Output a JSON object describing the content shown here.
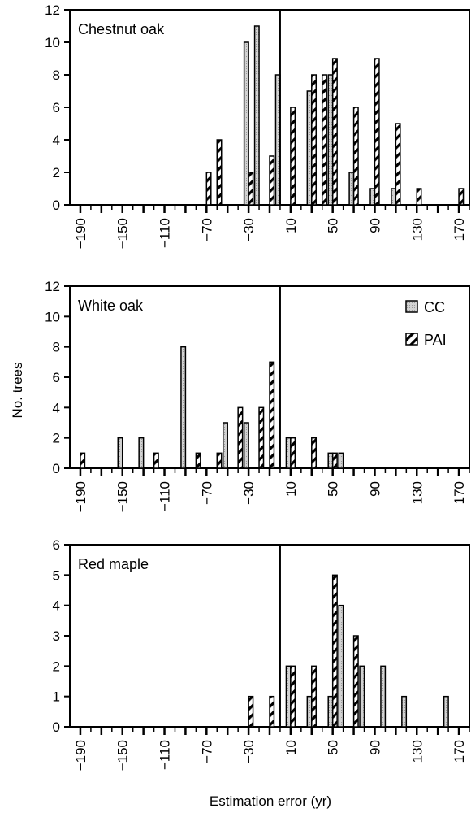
{
  "figure": {
    "xlabel": "Estimation error (yr)",
    "ylabel": "No. trees",
    "colors": {
      "cc_fill": "#d2d2d2",
      "pai_fill": "#ffffff",
      "stroke": "#000000"
    }
  },
  "chart_data": [
    {
      "type": "bar",
      "title": "Chestnut oak",
      "xlabel": "",
      "ylabel": "",
      "xlim": [
        -200,
        180
      ],
      "ylim": [
        0,
        12
      ],
      "yticks": [
        0,
        2,
        4,
        6,
        8,
        10,
        12
      ],
      "xticks": [
        -190,
        -150,
        -110,
        -70,
        -30,
        10,
        50,
        90,
        130,
        170
      ],
      "xtick_labels": [
        "−190",
        "−150",
        "−110",
        "−70",
        "−30",
        "10",
        "50",
        "90",
        "130",
        "170"
      ],
      "bin_width": 10,
      "reference_line_x": 0,
      "legend": null,
      "series": [
        {
          "name": "CC",
          "x": [
            -30,
            -20,
            0,
            30,
            50,
            70,
            90,
            110
          ],
          "values": [
            10,
            11,
            8,
            7,
            8,
            2,
            1,
            1
          ]
        },
        {
          "name": "PAI",
          "x": [
            -70,
            -60,
            -30,
            -10,
            10,
            30,
            40,
            50,
            70,
            90,
            110,
            130,
            170
          ],
          "values": [
            2,
            4,
            2,
            3,
            6,
            8,
            8,
            9,
            6,
            9,
            5,
            1,
            1
          ]
        }
      ]
    },
    {
      "type": "bar",
      "title": "White oak",
      "xlabel": "",
      "ylabel": "",
      "xlim": [
        -200,
        180
      ],
      "ylim": [
        0,
        12
      ],
      "yticks": [
        0,
        2,
        4,
        6,
        8,
        10,
        12
      ],
      "xticks": [
        -190,
        -150,
        -110,
        -70,
        -30,
        10,
        50,
        90,
        130,
        170
      ],
      "xtick_labels": [
        "−190",
        "−150",
        "−110",
        "−70",
        "−30",
        "10",
        "50",
        "90",
        "130",
        "170"
      ],
      "bin_width": 10,
      "reference_line_x": 0,
      "legend": {
        "position": "top-right",
        "entries": [
          "CC",
          "PAI"
        ]
      },
      "series": [
        {
          "name": "CC",
          "x": [
            -150,
            -130,
            -90,
            -50,
            -30,
            10,
            50,
            60
          ],
          "values": [
            2,
            2,
            8,
            3,
            3,
            2,
            1,
            1
          ]
        },
        {
          "name": "PAI",
          "x": [
            -190,
            -120,
            -80,
            -60,
            -40,
            -20,
            -10,
            10,
            30,
            50
          ],
          "values": [
            1,
            1,
            1,
            1,
            4,
            4,
            7,
            2,
            2,
            1
          ]
        }
      ]
    },
    {
      "type": "bar",
      "title": "Red maple",
      "xlabel": "",
      "ylabel": "",
      "xlim": [
        -200,
        180
      ],
      "ylim": [
        0,
        6
      ],
      "yticks": [
        0,
        1,
        2,
        3,
        4,
        5,
        6
      ],
      "xticks": [
        -190,
        -150,
        -110,
        -70,
        -30,
        10,
        50,
        90,
        130,
        170
      ],
      "xtick_labels": [
        "−190",
        "−150",
        "−110",
        "−70",
        "−30",
        "10",
        "50",
        "90",
        "130",
        "170"
      ],
      "bin_width": 10,
      "reference_line_x": 0,
      "legend": null,
      "series": [
        {
          "name": "CC",
          "x": [
            10,
            30,
            50,
            60,
            80,
            100,
            120,
            160
          ],
          "values": [
            2,
            1,
            1,
            4,
            2,
            2,
            1,
            1
          ]
        },
        {
          "name": "PAI",
          "x": [
            -30,
            -10,
            10,
            30,
            50,
            70
          ],
          "values": [
            1,
            1,
            2,
            2,
            5,
            3
          ]
        }
      ]
    }
  ]
}
